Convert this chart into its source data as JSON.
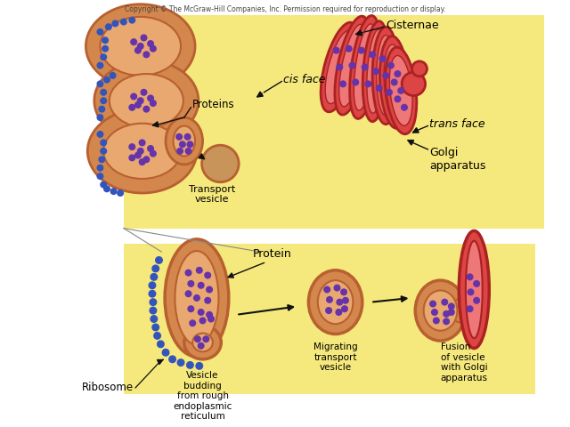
{
  "copyright_text": "Copyright © The McGraw-Hill Companies, Inc. Permission required for reproduction or display.",
  "bg_white": "#ffffff",
  "bg_yellow": "#f5e87c",
  "er_fill": "#d4874c",
  "er_inner": "#e8a870",
  "er_outline": "#b86030",
  "golgi_fill": "#dd4444",
  "golgi_inner": "#ee7777",
  "golgi_outline": "#aa2222",
  "transport_fill": "#c8945a",
  "dot_color": "#6633aa",
  "rib_color": "#3355bb",
  "arrow_color": "#111111",
  "text_color": "#000000",
  "labels": {
    "cisternae": "Cisternae",
    "cis_face": "cis face",
    "proteins": "Proteins",
    "transport_vesicle": "Transport\nvesicle",
    "trans_face": "trans face",
    "golgi_apparatus": "Golgi\napparatus",
    "protein": "Protein",
    "vesicle_budding": "Vesicle\nbudding\nfrom rough\nendoplasmic\nreticulum",
    "migrating": "Migrating\ntransport\nvesicle",
    "fusion": "Fusion\nof vesicle\nwith Golgi\napparatus",
    "ribosome": "Ribosome"
  }
}
